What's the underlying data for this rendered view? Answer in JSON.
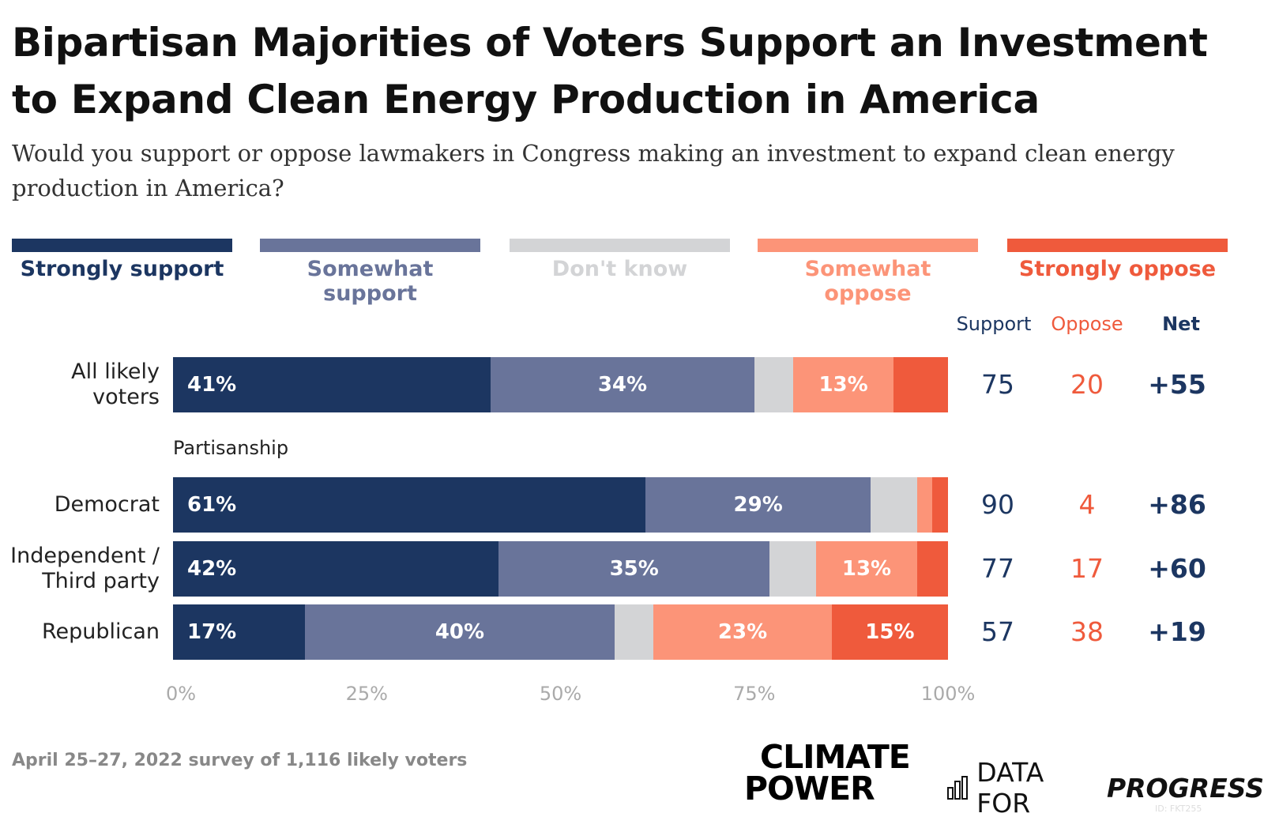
{
  "chart_data": {
    "type": "stacked_bar_horizontal",
    "title": "Bipartisan Majorities of Voters Support an Investment to Expand Clean Energy Production in America",
    "subtitle": "Would you support or oppose lawmakers in Congress making an investment to expand clean energy production in America?",
    "categories": [
      "All likely voters",
      "Democrat",
      "Independent / Third party",
      "Republican"
    ],
    "group_label": "Partisanship",
    "series": [
      {
        "name": "Strongly support",
        "color": "#1c3661",
        "values": [
          41,
          61,
          42,
          17
        ],
        "value_labels": [
          "41%",
          "61%",
          "42%",
          "17%"
        ]
      },
      {
        "name": "Somewhat support",
        "color": "#69749a",
        "values": [
          34,
          29,
          35,
          40
        ],
        "value_labels": [
          "34%",
          "29%",
          "35%",
          "40%"
        ]
      },
      {
        "name": "Don't know",
        "color": "#d3d4d6",
        "values": [
          5,
          6,
          6,
          5
        ],
        "value_labels": [
          null,
          null,
          null,
          null
        ]
      },
      {
        "name": "Somewhat oppose",
        "color": "#fc9478",
        "values": [
          13,
          2,
          13,
          23
        ],
        "value_labels": [
          "13%",
          null,
          "13%",
          "23%"
        ]
      },
      {
        "name": "Strongly oppose",
        "color": "#ef5a3c",
        "values": [
          7,
          2,
          4,
          15
        ],
        "value_labels": [
          null,
          null,
          null,
          "15%"
        ]
      }
    ],
    "xlim": [
      0,
      100
    ],
    "xticks": [
      {
        "value": 0,
        "label": "0%"
      },
      {
        "value": 25,
        "label": "25%"
      },
      {
        "value": 50,
        "label": "50%"
      },
      {
        "value": 75,
        "label": "75%"
      },
      {
        "value": 100,
        "label": "100%"
      }
    ],
    "summary": {
      "columns": [
        "Support",
        "Oppose",
        "Net"
      ],
      "support": [
        75,
        90,
        77,
        57
      ],
      "oppose": [
        20,
        4,
        17,
        38
      ],
      "net": [
        55,
        86,
        60,
        19
      ],
      "net_labels": [
        "+55",
        "+86",
        "+60",
        "+19"
      ]
    },
    "source": "April 25–27, 2022 survey of 1,116 likely voters",
    "logos": [
      [
        "CLIMATE",
        "POWER"
      ],
      [
        "DATA FOR",
        "PROGRESS"
      ]
    ],
    "id_note": "ID: FKT255"
  }
}
